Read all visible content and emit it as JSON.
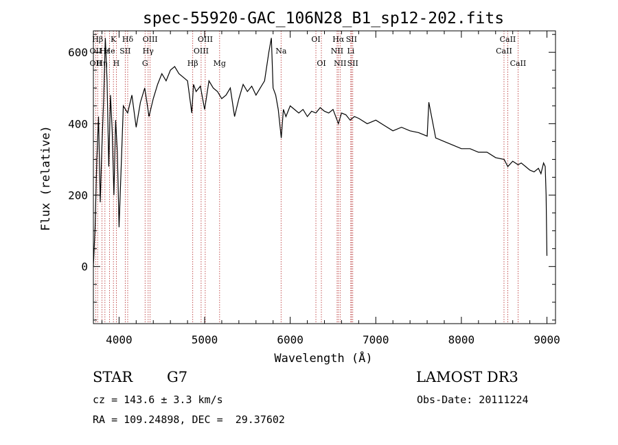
{
  "chart_data": {
    "type": "line",
    "title": "spec-55920-GAC_106N28_B1_sp12-202.fits",
    "xlabel": "Wavelength (Å)",
    "ylabel": "Flux (relative)",
    "xlim": [
      3700,
      9100
    ],
    "ylim": [
      -160,
      660
    ],
    "xticks": [
      4000,
      5000,
      6000,
      7000,
      8000,
      9000
    ],
    "yticks": [
      0,
      200,
      400,
      600
    ],
    "series": [
      {
        "x": [
          3700,
          3720,
          3740,
          3760,
          3780,
          3800,
          3820,
          3840,
          3860,
          3880,
          3900,
          3920,
          3940,
          3960,
          3980,
          4000,
          4050,
          4100,
          4150,
          4200,
          4250,
          4300,
          4350,
          4400,
          4450,
          4500,
          4550,
          4600,
          4650,
          4700,
          4750,
          4800,
          4850,
          4870,
          4900,
          4950,
          5000,
          5050,
          5100,
          5150,
          5200,
          5250,
          5300,
          5350,
          5400,
          5450,
          5500,
          5550,
          5600,
          5650,
          5700,
          5750,
          5780,
          5800,
          5830,
          5860,
          5895,
          5920,
          5950,
          6000,
          6050,
          6100,
          6150,
          6200,
          6250,
          6300,
          6350,
          6400,
          6450,
          6500,
          6563,
          6600,
          6650,
          6700,
          6750,
          6800,
          6900,
          7000,
          7100,
          7200,
          7300,
          7400,
          7500,
          7600,
          7620,
          7700,
          7800,
          7900,
          8000,
          8100,
          8200,
          8300,
          8400,
          8500,
          8542,
          8600,
          8662,
          8700,
          8750,
          8800,
          8850,
          8900,
          8930,
          8960,
          8980,
          8990,
          9000
        ],
        "y": [
          0,
          110,
          300,
          420,
          180,
          340,
          470,
          640,
          520,
          280,
          480,
          380,
          200,
          410,
          320,
          110,
          450,
          430,
          480,
          390,
          460,
          500,
          420,
          470,
          510,
          540,
          520,
          550,
          560,
          540,
          530,
          520,
          430,
          510,
          490,
          505,
          440,
          520,
          500,
          490,
          470,
          480,
          500,
          420,
          470,
          510,
          490,
          505,
          480,
          500,
          520,
          600,
          640,
          500,
          480,
          440,
          360,
          440,
          420,
          450,
          440,
          430,
          440,
          420,
          435,
          430,
          445,
          435,
          430,
          440,
          400,
          430,
          425,
          410,
          420,
          415,
          400,
          410,
          395,
          380,
          390,
          380,
          375,
          365,
          460,
          360,
          350,
          340,
          330,
          330,
          320,
          320,
          305,
          300,
          280,
          295,
          285,
          290,
          280,
          270,
          265,
          275,
          260,
          290,
          280,
          200,
          30
        ]
      }
    ],
    "spectral_lines": [
      {
        "label": "Hβ",
        "x": 3750,
        "row": 0
      },
      {
        "label": "OII",
        "x": 3727,
        "row": 1
      },
      {
        "label": "OII",
        "x": 3727,
        "row": 2
      },
      {
        "label": "Hε",
        "x": 3835,
        "row": 1
      },
      {
        "label": "Hη",
        "x": 3800,
        "row": 2
      },
      {
        "label": "K",
        "x": 3934,
        "row": 0
      },
      {
        "label": "He",
        "x": 3889,
        "row": 1
      },
      {
        "label": "H",
        "x": 3968,
        "row": 2
      },
      {
        "label": "Hδ",
        "x": 4101,
        "row": 0
      },
      {
        "label": "SII",
        "x": 4072,
        "row": 1
      },
      {
        "label": "OIII",
        "x": 4363,
        "row": 0
      },
      {
        "label": "Hγ",
        "x": 4340,
        "row": 1
      },
      {
        "label": "G",
        "x": 4304,
        "row": 2
      },
      {
        "label": "Hβ",
        "x": 4861,
        "row": 2
      },
      {
        "label": "OIII",
        "x": 5007,
        "row": 0
      },
      {
        "label": "OIII",
        "x": 4959,
        "row": 1
      },
      {
        "label": "Mg",
        "x": 5175,
        "row": 2
      },
      {
        "label": "Na",
        "x": 5893,
        "row": 1
      },
      {
        "label": "OI",
        "x": 6300,
        "row": 0
      },
      {
        "label": "OI",
        "x": 6364,
        "row": 2
      },
      {
        "label": "Hα",
        "x": 6563,
        "row": 0
      },
      {
        "label": "SII",
        "x": 6716,
        "row": 0
      },
      {
        "label": "NII",
        "x": 6548,
        "row": 1
      },
      {
        "label": "Li",
        "x": 6708,
        "row": 1
      },
      {
        "label": "NII",
        "x": 6583,
        "row": 2
      },
      {
        "label": "SII",
        "x": 6731,
        "row": 2
      },
      {
        "label": "CaII",
        "x": 8542,
        "row": 0
      },
      {
        "label": "CaII",
        "x": 8498,
        "row": 1
      },
      {
        "label": "CaII",
        "x": 8662,
        "row": 2
      }
    ],
    "line_markers_x": [
      3727,
      3750,
      3800,
      3835,
      3889,
      3934,
      3968,
      4072,
      4101,
      4304,
      4340,
      4363,
      4861,
      4959,
      5007,
      5175,
      5893,
      6300,
      6364,
      6548,
      6563,
      6583,
      6708,
      6716,
      6731,
      8498,
      8542,
      8662
    ]
  },
  "info": {
    "class_label": "STAR",
    "subclass": "G7",
    "survey": "LAMOST DR3",
    "cz": "cz = 143.6 ± 3.3 km/s",
    "obs_date": "Obs-Date: 20111224",
    "coords": "RA = 109.24898, DEC =  29.37602"
  }
}
